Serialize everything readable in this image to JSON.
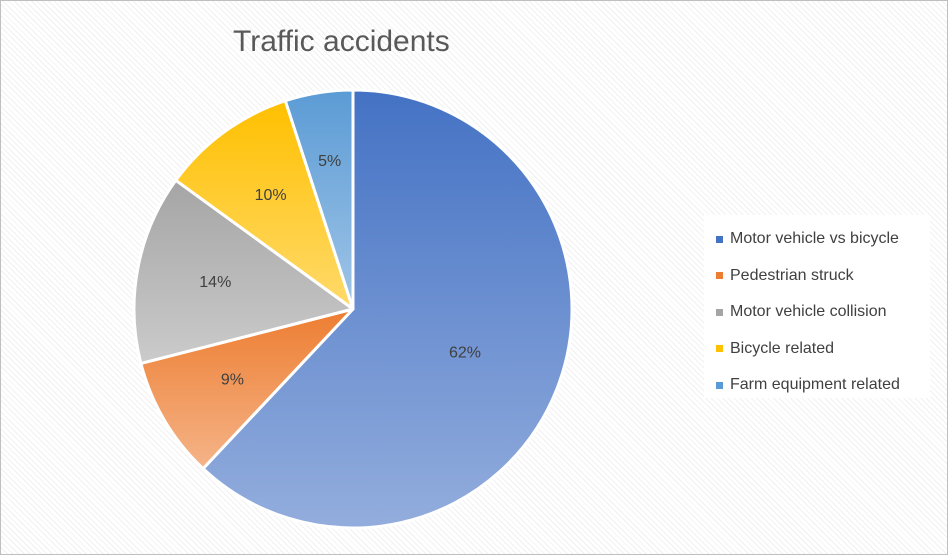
{
  "chart_data": {
    "type": "pie",
    "title": "Traffic accidents",
    "categories": [
      "Motor vehicle vs bicycle",
      "Pedestrian struck",
      "Motor vehicle collision",
      "Bicycle related",
      "Farm equipment related"
    ],
    "values": [
      62,
      9,
      14,
      10,
      5
    ],
    "value_labels": [
      "62%",
      "9%",
      "14%",
      "10%",
      "5%"
    ],
    "colors": [
      "#4472c4",
      "#ed7d31",
      "#a5a5a5",
      "#ffc000",
      "#5b9bd5"
    ],
    "legend_position": "right"
  }
}
